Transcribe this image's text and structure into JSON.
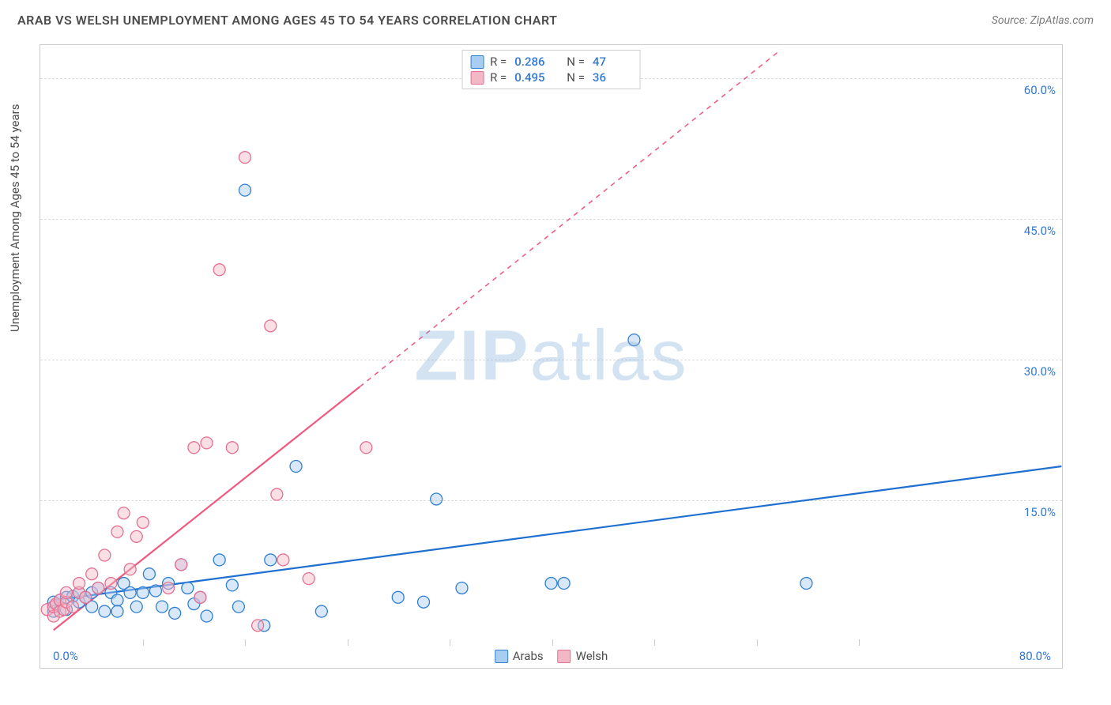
{
  "title": "ARAB VS WELSH UNEMPLOYMENT AMONG AGES 45 TO 54 YEARS CORRELATION CHART",
  "source": "Source: ZipAtlas.com",
  "y_axis_label": "Unemployment Among Ages 45 to 54 years",
  "watermark": {
    "zip": "ZIP",
    "atlas": "atlas"
  },
  "chart": {
    "type": "scatter",
    "background_color": "#ffffff",
    "border_color": "#cccccc",
    "grid_color": "#dcdcdc",
    "marker_radius": 7.5,
    "marker_stroke_width": 1.3,
    "marker_fill_opacity": 0.45,
    "xlim": [
      0,
      80
    ],
    "ylim": [
      0,
      63
    ],
    "x_tick_start": {
      "pos": 0,
      "label": "0.0%"
    },
    "x_tick_end": {
      "pos": 80,
      "label": "80.0%"
    },
    "x_minor_tick_start": 8,
    "x_minor_tick_step": 8,
    "x_minor_tick_count": 8,
    "y_ticks": [
      {
        "pos": 15,
        "label": "15.0%"
      },
      {
        "pos": 30,
        "label": "30.0%"
      },
      {
        "pos": 45,
        "label": "45.0%"
      },
      {
        "pos": 60,
        "label": "60.0%"
      }
    ],
    "series": [
      {
        "key": "arabs",
        "label": "Arabs",
        "R": "0.286",
        "N": "47",
        "color_fill": "#a9cdf1",
        "color_stroke": "#2f7fd1",
        "line_color": "#1f6fd0",
        "line_width": 2.2,
        "line_dash": "",
        "trend": {
          "x1": 1,
          "y1": 4.2,
          "x2": 80,
          "y2": 18.5
        },
        "points": [
          [
            1,
            3.5
          ],
          [
            1,
            3.0
          ],
          [
            1,
            4.0
          ],
          [
            1.5,
            4.2
          ],
          [
            2,
            3.2
          ],
          [
            2,
            4.5
          ],
          [
            2.5,
            4.6
          ],
          [
            3,
            4.0
          ],
          [
            3,
            5.0
          ],
          [
            3.5,
            4.5
          ],
          [
            4,
            5.0
          ],
          [
            4,
            3.5
          ],
          [
            4.5,
            5.5
          ],
          [
            5,
            3.0
          ],
          [
            5.5,
            5.0
          ],
          [
            6,
            4.2
          ],
          [
            6,
            3.0
          ],
          [
            6.5,
            6.0
          ],
          [
            7,
            5.0
          ],
          [
            7.5,
            3.5
          ],
          [
            8,
            5.0
          ],
          [
            8.5,
            7.0
          ],
          [
            9,
            5.2
          ],
          [
            9.5,
            3.5
          ],
          [
            10,
            6.0
          ],
          [
            10.5,
            2.8
          ],
          [
            11,
            8.0
          ],
          [
            11.5,
            5.5
          ],
          [
            12,
            3.8
          ],
          [
            12.5,
            4.5
          ],
          [
            13,
            2.5
          ],
          [
            14,
            8.5
          ],
          [
            15,
            5.8
          ],
          [
            15.5,
            3.5
          ],
          [
            16,
            48
          ],
          [
            17.5,
            1.5
          ],
          [
            18,
            8.5
          ],
          [
            20,
            18.5
          ],
          [
            22,
            3.0
          ],
          [
            28,
            4.5
          ],
          [
            30,
            4.0
          ],
          [
            31,
            15.0
          ],
          [
            33,
            5.5
          ],
          [
            40,
            6.0
          ],
          [
            41,
            6.0
          ],
          [
            46.5,
            32.0
          ],
          [
            60,
            6.0
          ]
        ]
      },
      {
        "key": "welsh",
        "label": "Welsh",
        "R": "0.495",
        "N": "36",
        "color_fill": "#f3b8c5",
        "color_stroke": "#e47191",
        "line_color": "#ef5980",
        "line_width": 2.2,
        "line_dash": "6 6",
        "trend": {
          "x1": 1,
          "y1": 1.0,
          "x2": 25,
          "y2": 27
        },
        "trend_dashed_extension": {
          "x1": 25,
          "y1": 27,
          "x2": 58,
          "y2": 63
        },
        "points": [
          [
            0.5,
            3.2
          ],
          [
            1,
            2.5
          ],
          [
            1,
            3.5
          ],
          [
            1.2,
            3.8
          ],
          [
            1.5,
            3.0
          ],
          [
            1.5,
            4.2
          ],
          [
            1.8,
            3.2
          ],
          [
            2,
            4.0
          ],
          [
            2,
            5.0
          ],
          [
            2.5,
            3.5
          ],
          [
            3,
            5.0
          ],
          [
            3,
            6.0
          ],
          [
            3.5,
            4.5
          ],
          [
            4,
            7.0
          ],
          [
            4.5,
            5.5
          ],
          [
            5,
            9.0
          ],
          [
            5.5,
            6.0
          ],
          [
            6,
            11.5
          ],
          [
            6.5,
            13.5
          ],
          [
            7,
            7.5
          ],
          [
            7.5,
            11.0
          ],
          [
            8,
            12.5
          ],
          [
            10,
            5.5
          ],
          [
            11,
            8.0
          ],
          [
            12,
            20.5
          ],
          [
            12.5,
            4.5
          ],
          [
            13,
            21.0
          ],
          [
            14,
            39.5
          ],
          [
            15,
            20.5
          ],
          [
            16,
            51.5
          ],
          [
            17,
            1.5
          ],
          [
            18,
            33.5
          ],
          [
            18.5,
            15.5
          ],
          [
            19,
            8.5
          ],
          [
            21,
            6.5
          ],
          [
            25.5,
            20.5
          ]
        ]
      }
    ],
    "legend_bottom": [
      {
        "key": "arabs",
        "label": "Arabs"
      },
      {
        "key": "welsh",
        "label": "Welsh"
      }
    ]
  }
}
